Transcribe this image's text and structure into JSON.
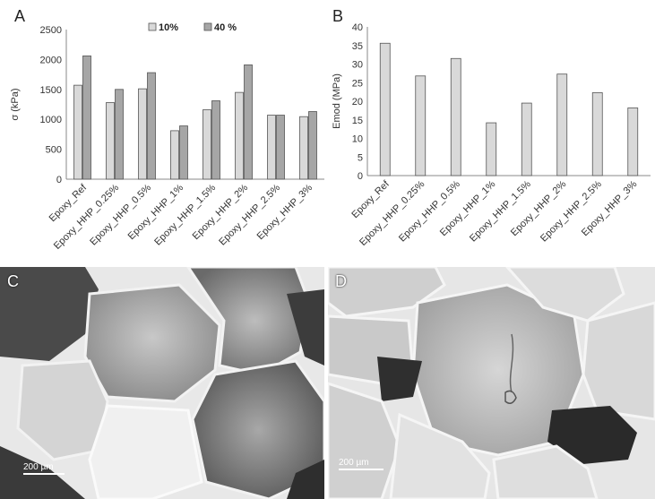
{
  "chart_data": [
    {
      "type": "bar",
      "panel_label": "A",
      "categories": [
        "Epoxy_Ref",
        "Epoxy_HHP_0.25%",
        "Epoxy_HHP_0.5%",
        "Epoxy_HHP_1%",
        "Epoxy_HHP_1.5%",
        "Epoxy_HHP_2%",
        "Epoxy_HHP_2.5%",
        "Epoxy_HHP_3%"
      ],
      "series": [
        {
          "name": "10%",
          "values": [
            1570,
            1280,
            1510,
            810,
            1160,
            1450,
            1070,
            1045
          ],
          "color": "#d9d9d9"
        },
        {
          "name": "40 %",
          "values": [
            2060,
            1500,
            1780,
            890,
            1310,
            1910,
            1070,
            1130
          ],
          "color": "#a6a6a6"
        }
      ],
      "ylabel": "σ (kPa)",
      "ylim": [
        0,
        2500
      ],
      "yticks": [
        0,
        500,
        1000,
        1500,
        2000,
        2500
      ],
      "grid": false,
      "legend": "top"
    },
    {
      "type": "bar",
      "panel_label": "B",
      "categories": [
        "Epoxy_Ref",
        "Epoxy_HHP_0.25%",
        "Epoxy_HHP_0.5%",
        "Epoxy_HHP_1%",
        "Epoxy_HHP_1.5%",
        "Epoxy_HHP_2%",
        "Epoxy_HHP_2.5%",
        "Epoxy_HHP_3%"
      ],
      "series": [
        {
          "values": [
            35.6,
            26.8,
            31.5,
            14.2,
            19.5,
            27.3,
            22.3,
            18.2
          ],
          "color": "#d9d9d9"
        }
      ],
      "ylabel": "Emod (MPa)",
      "ylim": [
        0,
        40
      ],
      "yticks": [
        0,
        5,
        10,
        15,
        20,
        25,
        30,
        35,
        40
      ],
      "grid": false
    }
  ],
  "images": [
    {
      "panel_label": "C",
      "scale_label": "200 µm"
    },
    {
      "panel_label": "D",
      "scale_label": "200 µm"
    }
  ]
}
